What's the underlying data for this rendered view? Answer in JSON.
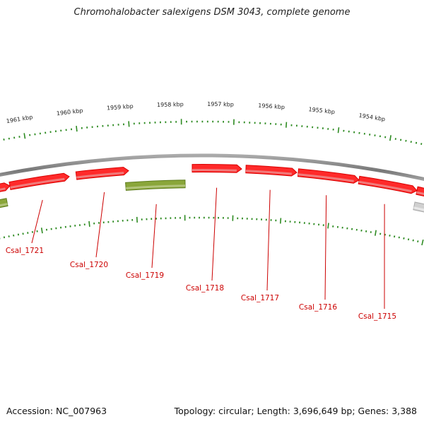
{
  "title": "Chromohalobacter salexigens DSM 3043, complete genome",
  "footer": {
    "accession": "Accession: NC_007963",
    "summary": "Topology: circular; Length: 3,696,649 bp; Genes: 3,388"
  },
  "colors": {
    "forward_gene": "#ee0000",
    "reverse_gene": "#6b8e23",
    "backbone": "#888888",
    "tick": "#2e8b22",
    "label": "#cc0000",
    "other_feature": "#bbbbbb"
  },
  "kbp_labels": [
    "1961 kbp",
    "1960 kbp",
    "1959 kbp",
    "1958 kbp",
    "1957 kbp",
    "1956 kbp",
    "1955 kbp",
    "1954 kbp"
  ],
  "genes": [
    {
      "name": "Csal_1721",
      "color": "forward_gene",
      "labeled": true
    },
    {
      "name": "Csal_1720",
      "color": "forward_gene",
      "labeled": true
    },
    {
      "name": "Csal_1719",
      "color": "reverse_gene",
      "labeled": true
    },
    {
      "name": "Csal_1718",
      "color": "forward_gene",
      "labeled": true
    },
    {
      "name": "Csal_1717",
      "color": "forward_gene",
      "labeled": true
    },
    {
      "name": "Csal_1716",
      "color": "forward_gene",
      "labeled": true
    },
    {
      "name": "Csal_1715",
      "color": "forward_gene",
      "labeled": true
    }
  ]
}
